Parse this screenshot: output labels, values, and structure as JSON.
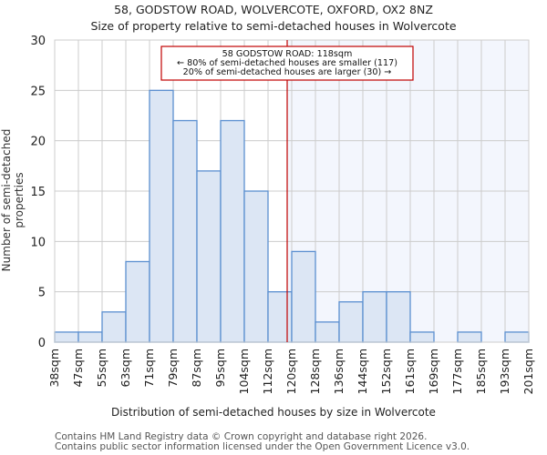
{
  "header": {
    "title": "58, GODSTOW ROAD, WOLVERCOTE, OXFORD, OX2 8NZ",
    "subtitle": "Size of property relative to semi-detached houses in Wolvercote"
  },
  "annotation": {
    "line1": "58 GODSTOW ROAD: 118sqm",
    "line2": "← 80% of semi-detached houses are smaller (117)",
    "line3": "20% of semi-detached houses are larger (30) →"
  },
  "footer": {
    "line1": "Contains HM Land Registry data © Crown copyright and database right 2026.",
    "line2": "Contains public sector information licensed under the Open Government Licence v3.0."
  },
  "colors": {
    "bar_fill": "#dce6f4",
    "bar_edge": "#5b8fd0",
    "highlight_bg": "#f3f6fd",
    "marker": "#c00000",
    "grid": "#cccccc"
  },
  "chart_data": {
    "type": "bar",
    "title": "58, GODSTOW ROAD, WOLVERCOTE, OXFORD, OX2 8NZ",
    "subtitle": "Size of property relative to semi-detached houses in Wolvercote",
    "xlabel": "Distribution of semi-detached houses by size in Wolvercote",
    "ylabel": "Number of semi-detached properties",
    "categories": [
      "38sqm",
      "47sqm",
      "55sqm",
      "63sqm",
      "71sqm",
      "79sqm",
      "87sqm",
      "95sqm",
      "104sqm",
      "112sqm",
      "120sqm",
      "128sqm",
      "136sqm",
      "144sqm",
      "152sqm",
      "161sqm",
      "169sqm",
      "177sqm",
      "185sqm",
      "193sqm",
      "201sqm"
    ],
    "values": [
      1,
      1,
      3,
      8,
      25,
      22,
      17,
      22,
      15,
      5,
      9,
      2,
      4,
      5,
      5,
      1,
      0,
      1,
      0,
      1
    ],
    "yticks": [
      0,
      5,
      10,
      15,
      20,
      25,
      30
    ],
    "ylim": [
      0,
      30
    ],
    "grid": true,
    "marker_value_sqm": 118,
    "marker_label": "58 GODSTOW ROAD: 118sqm",
    "smaller_pct": 80,
    "smaller_count": 117,
    "larger_pct": 20,
    "larger_count": 30
  }
}
